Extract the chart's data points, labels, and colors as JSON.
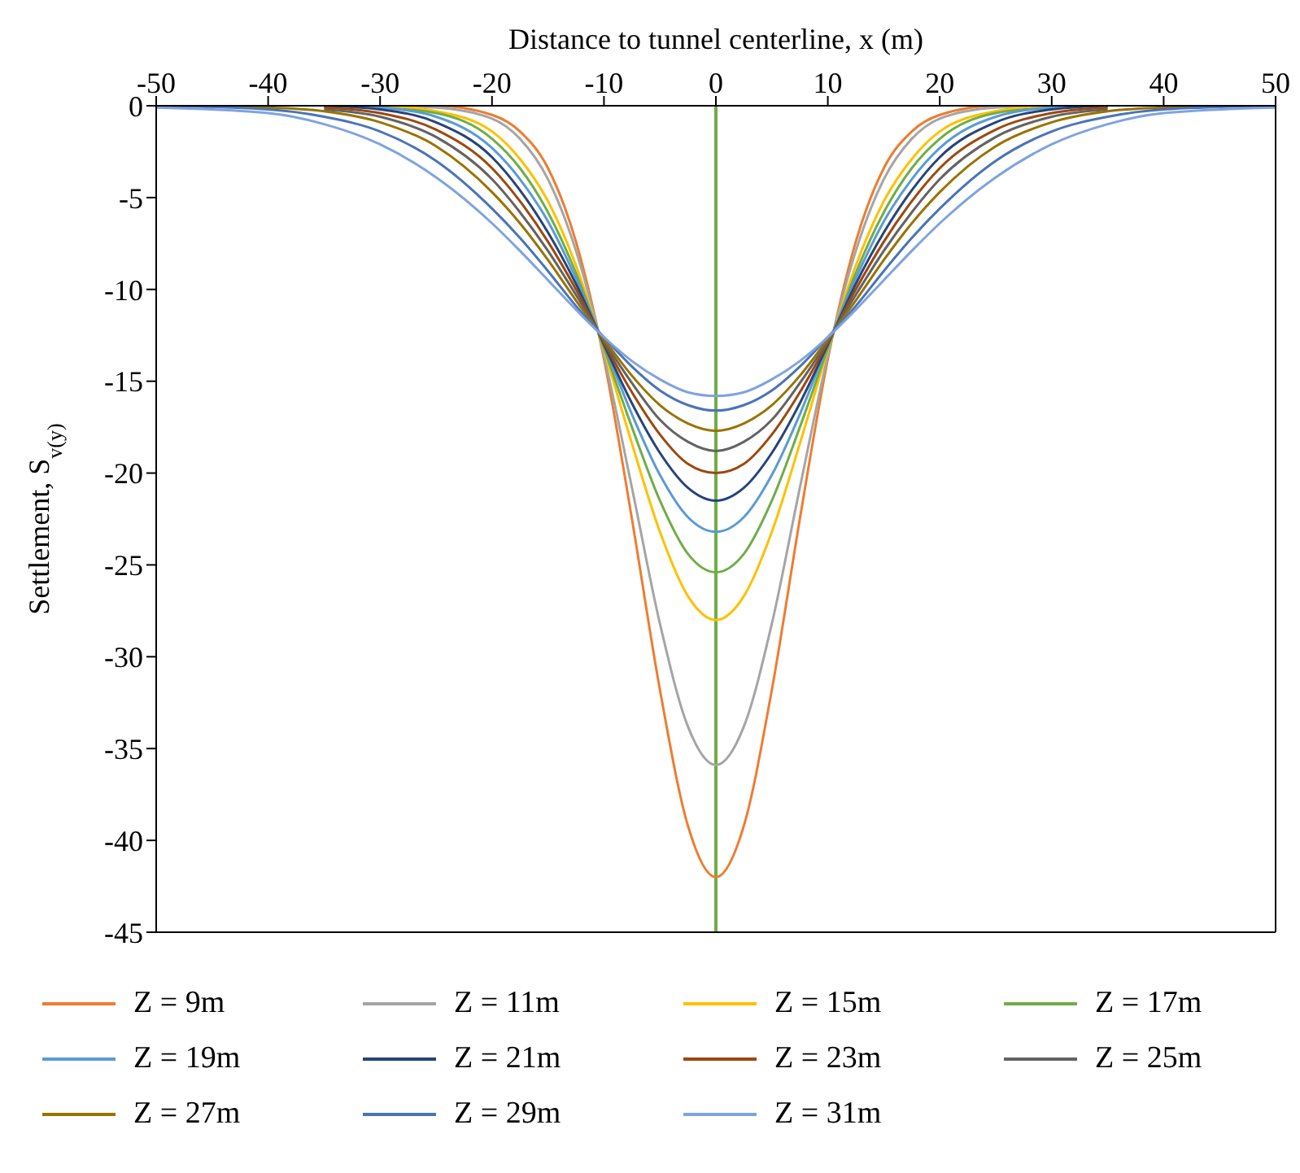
{
  "chart_data": {
    "type": "line",
    "xlabel": "Distance to tunnel centerline, x (m)",
    "ylabel": "Settlement, S$_{v(y)}$",
    "x": [
      -50,
      -40,
      -35,
      -30,
      -25,
      -20,
      -17.5,
      -15,
      -12.5,
      -10,
      -7.5,
      -5,
      -2.5,
      0,
      2.5,
      5,
      7.5,
      10,
      12.5,
      15,
      17.5,
      20,
      25,
      30,
      35,
      40,
      50
    ],
    "series": [
      {
        "name": "Z = 9m",
        "color": "#ed7d31",
        "values": [
          null,
          null,
          0,
          0,
          0,
          -0.5,
          -1.4,
          -3.4,
          -7.4,
          -13.8,
          -22.5,
          -31.8,
          -39.2,
          -42,
          -39.2,
          -31.8,
          -22.5,
          -13.8,
          -7.4,
          -3.4,
          -1.4,
          -0.5,
          0,
          0,
          0,
          null,
          null
        ]
      },
      {
        "name": "Z = 11m",
        "color": "#a5a5a5",
        "values": [
          null,
          null,
          0,
          0,
          -0.1,
          -0.7,
          -1.8,
          -4,
          -7.9,
          -13.6,
          -20.8,
          -28.2,
          -33.8,
          -35.9,
          -33.8,
          -28.2,
          -20.8,
          -13.6,
          -7.9,
          -4,
          -1.8,
          -0.7,
          -0.1,
          0,
          0,
          null,
          null
        ]
      },
      {
        "name": "Z = 15m",
        "color": "#ffc000",
        "values": [
          null,
          null,
          0,
          0,
          -0.3,
          -1.4,
          -2.9,
          -5.2,
          -8.7,
          -13.3,
          -18.4,
          -23.2,
          -26.7,
          -28,
          -26.7,
          -23.2,
          -18.4,
          -13.3,
          -8.7,
          -5.2,
          -2.9,
          -1.4,
          -0.3,
          0,
          0,
          null,
          null
        ]
      },
      {
        "name": "Z = 17m",
        "color": "#70ad47",
        "values": [
          null,
          null,
          0,
          -0.1,
          -0.4,
          -1.8,
          -3.4,
          -5.8,
          -9.1,
          -13.2,
          -17.5,
          -21.5,
          -24.4,
          -25.4,
          -24.4,
          -21.5,
          -17.5,
          -13.2,
          -9.1,
          -5.8,
          -3.4,
          -1.8,
          -0.4,
          -0.1,
          0,
          null,
          null
        ]
      },
      {
        "name": "Z = 19m",
        "color": "#5b9bd5",
        "values": [
          null,
          null,
          0,
          -0.1,
          -0.6,
          -2.3,
          -4,
          -6.3,
          -9.4,
          -13,
          -16.8,
          -20.1,
          -22.4,
          -23.2,
          -22.4,
          -20.1,
          -16.8,
          -13,
          -9.4,
          -6.3,
          -4,
          -2.3,
          -0.6,
          -0.1,
          0,
          null,
          null
        ]
      },
      {
        "name": "Z = 21m",
        "color": "#264478",
        "values": [
          null,
          null,
          0,
          -0.2,
          -0.9,
          -2.8,
          -4.6,
          -6.9,
          -9.7,
          -13,
          -16.2,
          -18.9,
          -20.8,
          -21.5,
          -20.8,
          -18.9,
          -16.2,
          -13,
          -9.7,
          -6.9,
          -4.6,
          -2.8,
          -0.9,
          -0.2,
          0,
          null,
          null
        ]
      },
      {
        "name": "Z = 23m",
        "color": "#9e480e",
        "values": [
          null,
          null,
          -0.1,
          -0.4,
          -1.3,
          -3.4,
          -5.2,
          -7.4,
          -10,
          -12.9,
          -15.6,
          -17.9,
          -19.5,
          -20,
          -19.5,
          -17.9,
          -15.6,
          -12.9,
          -10,
          -7.4,
          -5.2,
          -3.4,
          -1.3,
          -0.4,
          -0.1,
          null,
          null
        ]
      },
      {
        "name": "Z = 25m",
        "color": "#636363",
        "values": [
          null,
          null,
          -0.2,
          -0.6,
          -1.7,
          -4,
          -5.8,
          -7.9,
          -10.3,
          -12.8,
          -15.1,
          -17.1,
          -18.3,
          -18.8,
          -18.3,
          -17.1,
          -15.1,
          -12.8,
          -10.3,
          -7.9,
          -5.8,
          -4,
          -1.7,
          -0.6,
          -0.2,
          null,
          null
        ]
      },
      {
        "name": "Z = 27m",
        "color": "#997300",
        "values": [
          0,
          -0.1,
          -0.3,
          -0.9,
          -2.2,
          -4.7,
          -6.4,
          -8.4,
          -10.6,
          -12.7,
          -14.7,
          -16.3,
          -17.3,
          -17.7,
          -17.3,
          -16.3,
          -14.7,
          -12.7,
          -10.6,
          -8.4,
          -6.4,
          -4.7,
          -2.2,
          -0.9,
          -0.3,
          -0.1,
          0
        ]
      },
      {
        "name": "Z = 29m",
        "color": "#4a74b8",
        "values": [
          0,
          -0.2,
          -0.6,
          -1.4,
          -3,
          -5.6,
          -7.2,
          -9,
          -10.9,
          -12.6,
          -14.2,
          -15.5,
          -16.3,
          -16.6,
          -16.3,
          -15.5,
          -14.2,
          -12.6,
          -10.9,
          -9,
          -7.2,
          -5.6,
          -3,
          -1.4,
          -0.6,
          -0.2,
          0
        ]
      },
      {
        "name": "Z = 31m",
        "color": "#7fa3e0",
        "values": [
          -0.1,
          -0.4,
          -1,
          -2.1,
          -3.9,
          -6.4,
          -7.9,
          -9.5,
          -11.1,
          -12.6,
          -13.9,
          -14.9,
          -15.6,
          -15.8,
          -15.6,
          -14.9,
          -13.9,
          -12.6,
          -11.1,
          -9.5,
          -7.9,
          -6.4,
          -3.9,
          -2.1,
          -1,
          -0.4,
          -0.1
        ]
      }
    ],
    "xlim": [
      -50,
      50
    ],
    "xticks": [
      -50,
      -40,
      -30,
      -20,
      -10,
      0,
      10,
      20,
      30,
      40,
      50
    ],
    "ylim": [
      -45,
      0
    ],
    "yticks": [
      0,
      -5,
      -10,
      -15,
      -20,
      -25,
      -30,
      -35,
      -40,
      -45
    ],
    "ref_lines": [
      {
        "axis": "x",
        "value": 0,
        "color": "#70ad47"
      }
    ],
    "grid": false,
    "legend": "bottom",
    "marker": "none",
    "line_style": "solid"
  }
}
